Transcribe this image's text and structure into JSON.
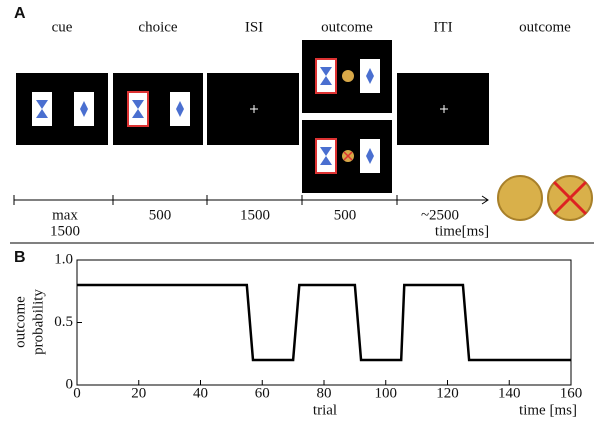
{
  "panel_a": {
    "label": "A",
    "stages": [
      "cue",
      "choice",
      "ISI",
      "outcome",
      "ITI",
      "outcome"
    ],
    "durations": [
      [
        "max",
        "1500"
      ],
      [
        "500"
      ],
      [
        "1500"
      ],
      [
        "500"
      ],
      [
        "~2500"
      ]
    ],
    "time_label": "time[ms]"
  },
  "chart_data": {
    "type": "line",
    "panel_label": "B",
    "ylabel": [
      "outcome",
      "probability"
    ],
    "xlabel": "trial",
    "xlabel2": "time [ms]",
    "x": [
      0,
      55,
      57,
      70,
      72,
      90,
      92,
      105,
      106,
      125,
      127,
      160
    ],
    "series": [
      {
        "color": "#000000",
        "values": [
          0.8,
          0.8,
          0.2,
          0.2,
          0.8,
          0.8,
          0.2,
          0.2,
          0.8,
          0.8,
          0.2,
          0.2
        ]
      }
    ],
    "xlim": [
      0,
      160
    ],
    "xticks": [
      0,
      20,
      40,
      60,
      80,
      100,
      120,
      140,
      160
    ],
    "ylim": [
      0,
      1
    ],
    "yticks": [
      0,
      0.5,
      {
        "value": 1,
        "label": "1.0"
      }
    ]
  }
}
